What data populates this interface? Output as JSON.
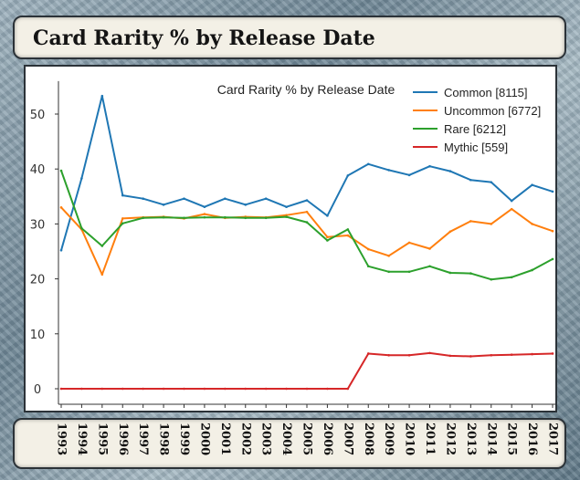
{
  "header": {
    "title": "Card Rarity % by Release Date"
  },
  "chart_data": {
    "type": "line",
    "title": "Card Rarity % by Release Date",
    "xlabel": "",
    "ylabel": "",
    "x": [
      "1993",
      "1994",
      "1995",
      "1996",
      "1997",
      "1998",
      "1999",
      "2000",
      "2001",
      "2002",
      "2003",
      "2004",
      "2005",
      "2006",
      "2007",
      "2008",
      "2009",
      "2010",
      "2011",
      "2012",
      "2013",
      "2014",
      "2015",
      "2016",
      "2017"
    ],
    "ylim": [
      -3,
      56
    ],
    "yticks": [
      0,
      10,
      20,
      30,
      40,
      50
    ],
    "grid": false,
    "legend_position": "top-right",
    "series": [
      {
        "name": "Common [8115]",
        "color": "#1f77b4",
        "values": [
          25.2,
          38.3,
          53.3,
          35.2,
          34.6,
          33.5,
          34.6,
          33.1,
          34.6,
          33.5,
          34.6,
          33.1,
          34.3,
          31.5,
          38.8,
          40.9,
          39.8,
          38.9,
          40.5,
          39.6,
          38.0,
          37.6,
          34.2,
          37.1,
          35.9
        ]
      },
      {
        "name": "Uncommon [6772]",
        "color": "#ff7f0e",
        "values": [
          33.0,
          29.0,
          20.8,
          31.0,
          31.2,
          31.3,
          31.0,
          31.8,
          31.1,
          31.3,
          31.2,
          31.6,
          32.2,
          27.6,
          27.9,
          25.4,
          24.2,
          26.6,
          25.5,
          28.6,
          30.5,
          30.0,
          32.7,
          30.0,
          28.7
        ]
      },
      {
        "name": "Rare [6212]",
        "color": "#2ca02c",
        "values": [
          39.7,
          29.2,
          26.0,
          30.1,
          31.1,
          31.2,
          31.1,
          31.2,
          31.2,
          31.1,
          31.1,
          31.3,
          30.3,
          27.0,
          29.0,
          22.3,
          21.3,
          21.3,
          22.3,
          21.1,
          21.0,
          19.9,
          20.3,
          21.6,
          23.6
        ]
      },
      {
        "name": "Mythic [559]",
        "color": "#d62728",
        "values": [
          0,
          0,
          0,
          0,
          0,
          0,
          0,
          0,
          0,
          0,
          0,
          0,
          0,
          0,
          0,
          6.4,
          6.1,
          6.1,
          6.5,
          6.0,
          5.9,
          6.1,
          6.2,
          6.3,
          6.4
        ]
      }
    ]
  }
}
